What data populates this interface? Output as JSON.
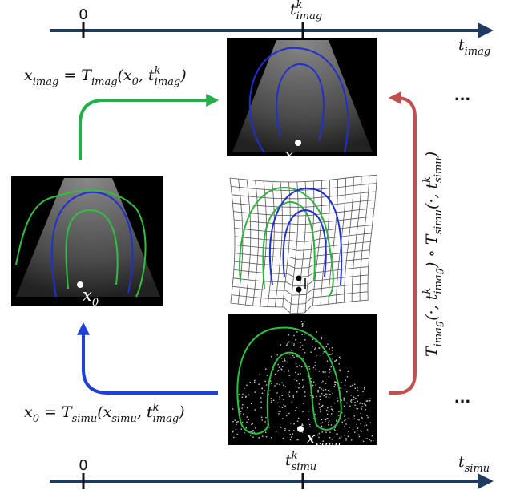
{
  "top_axis": {
    "origin_label": "0",
    "tick_label": {
      "base": "t",
      "sup": "k",
      "sub": "imag"
    },
    "axis_label": {
      "base": "t",
      "sub": "imag"
    }
  },
  "bottom_axis": {
    "origin_label": "0",
    "tick_label": {
      "base": "t",
      "sup": "k",
      "sub": "simu"
    },
    "axis_label": {
      "base": "t",
      "sub": "simu"
    }
  },
  "formulas": {
    "imag_map": [
      {
        "base": "x",
        "sub": "imag"
      },
      {
        "base": " = T",
        "sub": "imag"
      },
      {
        "base": "(x",
        "sub": "0"
      },
      {
        "base": ", t",
        "sup": "k",
        "sub": "imag"
      },
      {
        "base": ")"
      }
    ],
    "simu_map": [
      {
        "base": "x",
        "sub": "0"
      },
      {
        "base": " = T",
        "sub": "simu"
      },
      {
        "base": "(x",
        "sub": "simu"
      },
      {
        "base": ", t",
        "sup": "k",
        "sub": "imag"
      },
      {
        "base": ")"
      }
    ],
    "composition": [
      {
        "base": "T",
        "sub": "imag"
      },
      {
        "base": "(·, t",
        "sup": "k",
        "sub": "imag"
      },
      {
        "base": ") ∘ T",
        "sub": "simu"
      },
      {
        "base": "(·, t",
        "sup": "k",
        "sub": "simu"
      },
      {
        "base": ")"
      }
    ]
  },
  "points": {
    "x_imag": {
      "base": "x",
      "sub": "imag"
    },
    "x_0": {
      "base": "x",
      "sub": "0"
    },
    "x_simu": {
      "base": "x",
      "sub": "simu"
    }
  },
  "ellipses": [
    "...",
    "..."
  ]
}
